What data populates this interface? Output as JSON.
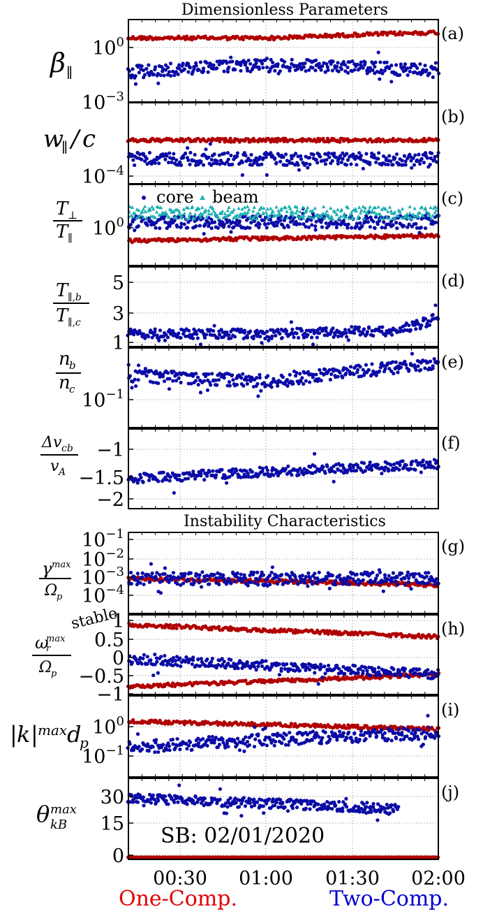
{
  "colors": {
    "one_comp": "#b00000",
    "core": "#0a0aa6",
    "beam": "#1aaeb0",
    "grid": "#888888"
  },
  "headers": {
    "top": "Dimensionless Parameters",
    "middle": "Instability Characteristics"
  },
  "footer": {
    "left": "One-Comp.",
    "right": "Two-Comp.",
    "left_color": "#e00000",
    "right_color": "#0000cc"
  },
  "annotation": "SB: 02/01/2020",
  "stable_label": "stable",
  "legend": {
    "core": "core",
    "beam": "beam"
  },
  "chart_data": {
    "type": "scatter",
    "x_axis": {
      "label": "",
      "range": [
        "00:05",
        "02:00"
      ],
      "ticks": [
        "00:30",
        "01:00",
        "01:30",
        "02:00"
      ]
    },
    "panels": [
      {
        "id": "a",
        "label": "(a)",
        "ylabel": "β∥",
        "scale": "log",
        "ylim": [
          0.001,
          30
        ],
        "ticks": [
          "10^0",
          "10^-3"
        ],
        "series": [
          {
            "name": "One-Comp.",
            "trend": [
              [
                5,
                3
              ],
              [
                60,
                3
              ],
              [
                120,
                6
              ]
            ]
          },
          {
            "name": "core",
            "trend": [
              [
                5,
                0.04
              ],
              [
                60,
                0.1
              ],
              [
                120,
                0.05
              ]
            ]
          }
        ]
      },
      {
        "id": "b",
        "label": "(b)",
        "ylabel": "w∥/c",
        "scale": "log",
        "ylim": [
          0.0001,
          0.002
        ],
        "ticks": [
          "10^-4"
        ],
        "series": [
          {
            "name": "One-Comp.",
            "trend": [
              [
                5,
                0.0005
              ],
              [
                120,
                0.0005
              ]
            ]
          },
          {
            "name": "core",
            "trend": [
              [
                5,
                0.00025
              ],
              [
                120,
                0.00025
              ]
            ]
          }
        ]
      },
      {
        "id": "c",
        "label": "(c)",
        "ylabel": "T⊥/T∥",
        "scale": "log",
        "ylim": [
          0.2,
          4
        ],
        "ticks": [
          "10^0"
        ],
        "series": [
          {
            "name": "One-Comp.",
            "trend": [
              [
                5,
                0.5
              ],
              [
                120,
                0.6
              ]
            ]
          },
          {
            "name": "core",
            "trend": [
              [
                5,
                1
              ],
              [
                120,
                1
              ]
            ]
          },
          {
            "name": "beam",
            "trend": [
              [
                5,
                1.4
              ],
              [
                120,
                1.4
              ]
            ]
          }
        ]
      },
      {
        "id": "d",
        "label": "(d)",
        "ylabel": "T∥,b/T∥,c",
        "scale": "linear",
        "ylim": [
          1,
          6
        ],
        "ticks": [
          "5",
          "3",
          "1"
        ],
        "series": [
          {
            "name": "core",
            "trend": [
              [
                5,
                1.8
              ],
              [
                60,
                1.8
              ],
              [
                105,
                2
              ],
              [
                120,
                2.8
              ]
            ]
          }
        ]
      },
      {
        "id": "e",
        "label": "(e)",
        "ylabel": "nb/nc",
        "scale": "log",
        "ylim": [
          0.05,
          0.8
        ],
        "ticks": [
          "10^-1"
        ],
        "series": [
          {
            "name": "core",
            "trend": [
              [
                5,
                0.3
              ],
              [
                60,
                0.25
              ],
              [
                120,
                0.45
              ]
            ]
          }
        ]
      },
      {
        "id": "f",
        "label": "(f)",
        "ylabel": "Δvcb/vA",
        "scale": "linear",
        "ylim": [
          -2.2,
          -0.6
        ],
        "ticks": [
          "-1",
          "-1.5",
          "-2"
        ],
        "series": [
          {
            "name": "core",
            "trend": [
              [
                5,
                -1.6
              ],
              [
                60,
                -1.45
              ],
              [
                120,
                -1.3
              ]
            ]
          }
        ]
      },
      {
        "id": "g",
        "label": "(g)",
        "ylabel": "γmax/Ωp",
        "scale": "log",
        "ylim": [
          3e-05,
          0.1
        ],
        "ticks": [
          "10^-1",
          "10^-2",
          "10^-3",
          "10^-4"
        ],
        "series": [
          {
            "name": "One-Comp.",
            "trend": [
              [
                5,
                0.001
              ],
              [
                120,
                0.0005
              ]
            ]
          },
          {
            "name": "core",
            "trend": [
              [
                5,
                0.001
              ],
              [
                120,
                0.001
              ]
            ]
          }
        ]
      },
      {
        "id": "h",
        "label": "(h)",
        "ylabel": "ωrmax/Ωp",
        "scale": "linear",
        "ylim": [
          -1,
          1
        ],
        "ticks": [
          "1",
          "0.5",
          "0",
          "-0.5",
          "-1"
        ],
        "series": [
          {
            "name": "One-Comp.",
            "trend": [
              [
                5,
                0.75
              ],
              [
                120,
                0.45
              ]
            ]
          },
          {
            "name": "One-Comp.",
            "trend": [
              [
                5,
                -0.8
              ],
              [
                120,
                -0.5
              ]
            ]
          },
          {
            "name": "core",
            "trend": [
              [
                5,
                -0.1
              ],
              [
                120,
                -0.5
              ]
            ]
          }
        ]
      },
      {
        "id": "i",
        "label": "(i)",
        "ylabel": "|k|max dp",
        "scale": "log",
        "ylim": [
          0.04,
          1.6
        ],
        "ticks": [
          "10^0",
          "10^-1"
        ],
        "series": [
          {
            "name": "One-Comp.",
            "trend": [
              [
                5,
                0.5
              ],
              [
                120,
                0.35
              ]
            ]
          },
          {
            "name": "core",
            "trend": [
              [
                5,
                0.15
              ],
              [
                120,
                0.3
              ]
            ]
          }
        ]
      },
      {
        "id": "j",
        "label": "(j)",
        "ylabel": "θkBmax",
        "scale": "linear",
        "ylim": [
          0,
          32
        ],
        "ticks": [
          "30",
          "15",
          "0"
        ],
        "series": [
          {
            "name": "One-Comp.",
            "trend": [
              [
                5,
                0
              ],
              [
                120,
                0
              ]
            ]
          },
          {
            "name": "core",
            "trend": [
              [
                5,
                24
              ],
              [
                60,
                22
              ],
              [
                105,
                20
              ]
            ]
          }
        ]
      }
    ]
  }
}
